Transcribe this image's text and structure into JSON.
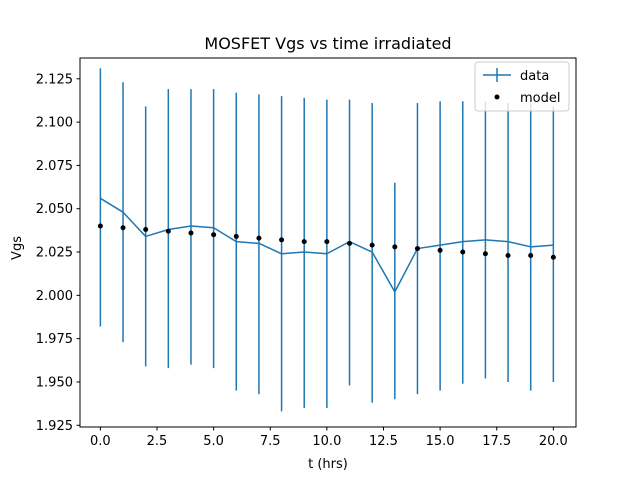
{
  "chart_data": {
    "type": "line",
    "title": "MOSFET Vgs vs time irradiated",
    "xlabel": "t (hrs)",
    "ylabel": "Vgs",
    "xlim": [
      -0.9,
      21.0
    ],
    "ylim": [
      1.924,
      2.137
    ],
    "xticks": [
      0.0,
      2.5,
      5.0,
      7.5,
      10.0,
      12.5,
      15.0,
      17.5,
      20.0
    ],
    "xtick_labels": [
      "0.0",
      "2.5",
      "5.0",
      "7.5",
      "10.0",
      "12.5",
      "15.0",
      "17.5",
      "20.0"
    ],
    "yticks": [
      1.925,
      1.95,
      1.975,
      2.0,
      2.025,
      2.05,
      2.075,
      2.1,
      2.125
    ],
    "ytick_labels": [
      "1.925",
      "1.950",
      "1.975",
      "2.000",
      "2.025",
      "2.050",
      "2.075",
      "2.100",
      "2.125"
    ],
    "grid": false,
    "legend_position": "top-right",
    "colors": {
      "data": "#1f77b4",
      "model": "#000000"
    },
    "series": [
      {
        "name": "data",
        "style": "line-errorbar",
        "x": [
          0,
          1,
          2,
          3,
          4,
          5,
          6,
          7,
          8,
          9,
          10,
          11,
          12,
          13,
          14,
          15,
          16,
          17,
          18,
          19,
          20
        ],
        "y": [
          2.056,
          2.048,
          2.034,
          2.038,
          2.04,
          2.039,
          2.031,
          2.03,
          2.024,
          2.025,
          2.024,
          2.031,
          2.025,
          2.002,
          2.027,
          2.029,
          2.031,
          2.032,
          2.031,
          2.028,
          2.029
        ],
        "yerr_low": [
          1.982,
          1.973,
          1.959,
          1.958,
          1.96,
          1.958,
          1.945,
          1.943,
          1.933,
          1.935,
          1.935,
          1.948,
          1.938,
          1.94,
          1.943,
          1.945,
          1.949,
          1.952,
          1.95,
          1.945,
          1.95
        ],
        "yerr_high": [
          2.131,
          2.123,
          2.109,
          2.119,
          2.119,
          2.119,
          2.117,
          2.116,
          2.115,
          2.114,
          2.113,
          2.113,
          2.111,
          2.065,
          2.111,
          2.112,
          2.112,
          2.112,
          2.111,
          2.111,
          2.109
        ]
      },
      {
        "name": "model",
        "style": "points",
        "x": [
          0,
          1,
          2,
          3,
          4,
          5,
          6,
          7,
          8,
          9,
          10,
          11,
          12,
          13,
          14,
          15,
          16,
          17,
          18,
          19,
          20
        ],
        "y": [
          2.04,
          2.039,
          2.038,
          2.037,
          2.036,
          2.035,
          2.034,
          2.033,
          2.032,
          2.031,
          2.031,
          2.03,
          2.029,
          2.028,
          2.027,
          2.026,
          2.025,
          2.024,
          2.023,
          2.023,
          2.022
        ]
      }
    ]
  }
}
